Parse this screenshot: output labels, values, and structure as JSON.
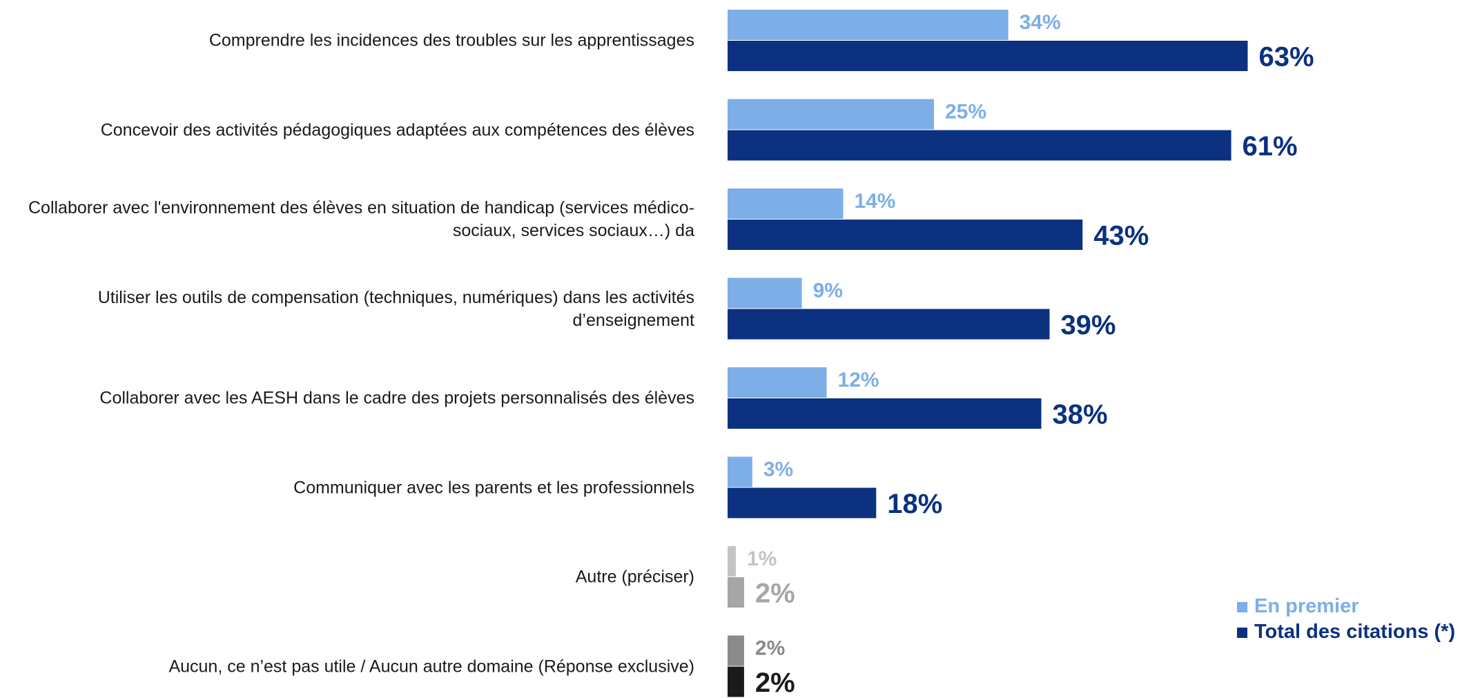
{
  "chart_data": {
    "type": "hbar",
    "categories": [
      "Comprendre les incidences des troubles sur les apprentissages",
      "Concevoir des activités pédagogiques adaptées aux compétences des élèves",
      "Collaborer avec l'environnement des élèves en situation de handicap (services médico-sociaux, services sociaux…) da",
      "Utiliser les outils de compensation (techniques, numériques) dans les activités d’enseignement",
      "Collaborer avec les AESH dans le cadre des projets personnalisés des élèves",
      "Communiquer avec les parents et les professionnels",
      "Autre (préciser)",
      "Aucun, ce n’est pas utile / Aucun autre domaine (Réponse exclusive)"
    ],
    "series": [
      {
        "name": "En premier",
        "color": "#7daee8",
        "colors": [
          "#7daee8",
          "#7daee8",
          "#7daee8",
          "#7daee8",
          "#7daee8",
          "#7daee8",
          "#c4c4c4",
          "#8a8a8a"
        ],
        "values": [
          34,
          25,
          14,
          9,
          12,
          3,
          1,
          2
        ],
        "value_labels": [
          "34%",
          "25%",
          "14%",
          "9%",
          "12%",
          "3%",
          "1%",
          "2%"
        ]
      },
      {
        "name": "Total des citations (*)",
        "color": "#0b3180",
        "colors": [
          "#0b3180",
          "#0b3180",
          "#0b3180",
          "#0b3180",
          "#0b3180",
          "#0b3180",
          "#a6a6a6",
          "#1a1a1a"
        ],
        "values": [
          63,
          61,
          43,
          39,
          38,
          18,
          2,
          2
        ],
        "value_labels": [
          "63%",
          "61%",
          "43%",
          "39%",
          "38%",
          "18%",
          "2%",
          "2%"
        ]
      }
    ],
    "legend": "bottom-right"
  }
}
